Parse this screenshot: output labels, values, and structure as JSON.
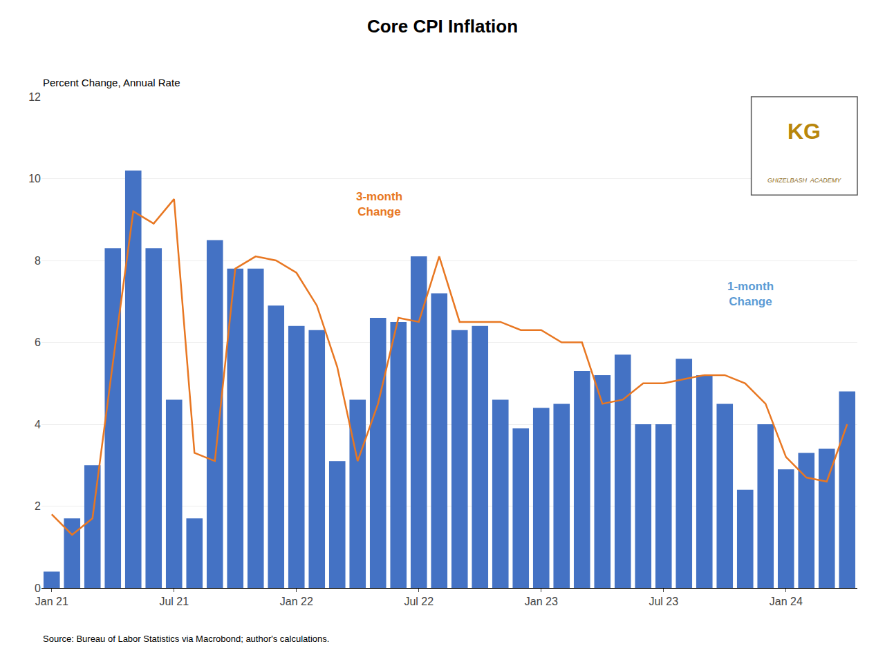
{
  "chart_data": {
    "type": "bar",
    "title": "Core CPI Inflation",
    "ylabel": "Percent Change, Annual Rate",
    "source": "Source: Bureau of Labor Statistics via Macrobond; author's calculations.",
    "categories": [
      "Jan 21",
      null,
      null,
      null,
      null,
      null,
      "Jul 21",
      null,
      null,
      null,
      null,
      null,
      "Jan 22",
      null,
      null,
      null,
      null,
      null,
      "Jul 22",
      null,
      null,
      null,
      null,
      null,
      "Jan 23",
      null,
      null,
      null,
      null,
      null,
      "Jul 23",
      null,
      null,
      null,
      null,
      null,
      "Jan 24",
      null,
      null,
      null
    ],
    "series": [
      {
        "type": "bar",
        "color": "#4472C4",
        "values": [
          0.4,
          1.7,
          3.0,
          8.3,
          10.2,
          8.3,
          4.6,
          1.7,
          8.5,
          7.8,
          7.8,
          6.9,
          6.4,
          6.3,
          3.1,
          4.6,
          6.6,
          6.5,
          8.1,
          7.2,
          6.3,
          6.4,
          4.6,
          3.9,
          4.4,
          4.5,
          5.3,
          5.2,
          5.7,
          4.0,
          4.0,
          5.6,
          5.2,
          4.5,
          2.4,
          4.0,
          2.9,
          3.3,
          3.4,
          4.8
        ]
      },
      {
        "type": "line",
        "color": "#E87722",
        "values": [
          1.8,
          1.3,
          1.7,
          5.5,
          9.2,
          8.9,
          9.5,
          3.3,
          3.1,
          7.8,
          8.1,
          8.0,
          7.7,
          6.9,
          5.4,
          3.1,
          4.5,
          6.6,
          6.5,
          8.1,
          6.5,
          6.5,
          6.5,
          6.3,
          6.3,
          6.0,
          6.0,
          4.5,
          4.6,
          5.0,
          5.0,
          5.1,
          5.2,
          5.2,
          5.0,
          4.5,
          3.2,
          2.7,
          2.6,
          4.0
        ]
      }
    ],
    "ylim": [
      0,
      12
    ],
    "yticks": [
      0,
      2,
      4,
      6,
      8,
      10,
      12
    ],
    "grid": true,
    "annotations": [
      {
        "text": "3-month\nChange",
        "color": "#E87722"
      },
      {
        "text": "1-month\nChange",
        "color": "#5B9BD5"
      }
    ],
    "logo": [
      {
        "text": "KG",
        "color": "#B8860B"
      },
      {
        "text": "GHIZELBASH  ACADEMY",
        "color": "#8B6914"
      }
    ]
  }
}
